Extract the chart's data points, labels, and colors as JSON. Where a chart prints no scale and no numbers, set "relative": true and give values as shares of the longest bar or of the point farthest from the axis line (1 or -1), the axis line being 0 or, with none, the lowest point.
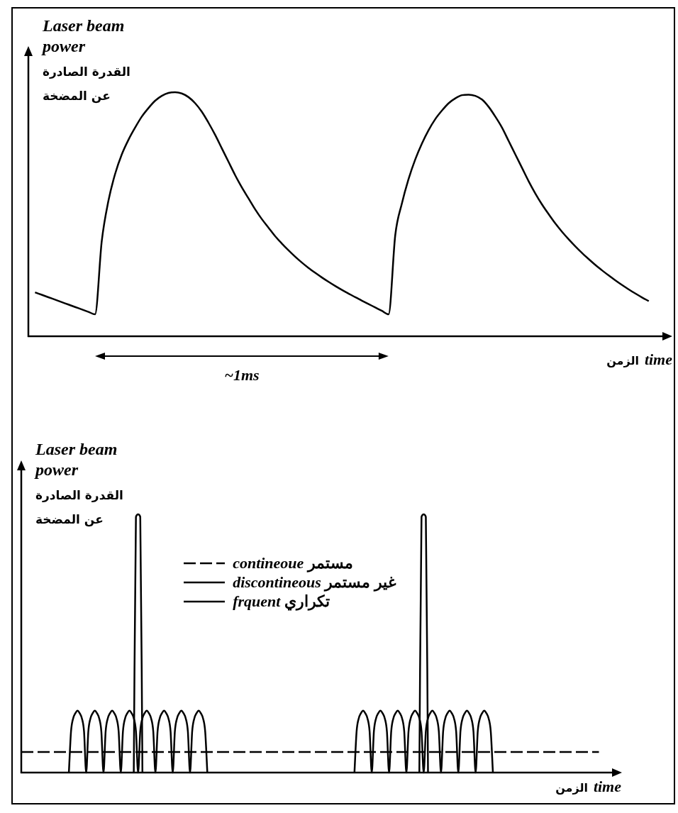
{
  "chart_data": [
    {
      "type": "line",
      "relative": true,
      "tick_labels": false,
      "ylabel": "Laser beam power القدرة الصادرة عن المضخة",
      "xlabel": "الزمن time",
      "annotations": [
        "~1ms"
      ],
      "color": "#000000",
      "categories": [
        null,
        null,
        null,
        null,
        null,
        null,
        null,
        null,
        null,
        null,
        null,
        null,
        null,
        null,
        null,
        null,
        null,
        null,
        null,
        null,
        null,
        null,
        null,
        null,
        null,
        null,
        null,
        null,
        null,
        null,
        null,
        null,
        null,
        null,
        null,
        null,
        null,
        null,
        null,
        null,
        null,
        null,
        null,
        null,
        null,
        null,
        null,
        null,
        null,
        null,
        null,
        null,
        null,
        null,
        null,
        null,
        null,
        null,
        null,
        null,
        null,
        null,
        null,
        null,
        null,
        null,
        null,
        null,
        null,
        null,
        null,
        null,
        null,
        null,
        null,
        null,
        null,
        null,
        null,
        null,
        null,
        null,
        null,
        null,
        null,
        null,
        null,
        null,
        null,
        null,
        null,
        null,
        null,
        null,
        null,
        null,
        null
      ],
      "values": [
        null,
        0.18,
        0.17,
        0.16,
        0.15,
        0.14,
        0.13,
        0.12,
        0.11,
        0.1,
        0.09,
        0.39,
        0.555,
        0.665,
        0.745,
        0.805,
        0.855,
        0.9,
        0.935,
        0.965,
        0.985,
        0.997,
        1,
        0.995,
        0.98,
        0.955,
        0.92,
        0.875,
        0.825,
        0.77,
        0.715,
        0.66,
        0.61,
        0.565,
        0.52,
        0.48,
        0.445,
        0.41,
        0.38,
        0.352,
        0.326,
        0.302,
        0.28,
        0.26,
        0.241,
        0.223,
        0.206,
        0.19,
        0.175,
        0.16,
        0.146,
        0.132,
        0.118,
        0.104,
        0.09,
        0.415,
        0.545,
        0.645,
        0.725,
        0.79,
        0.845,
        0.89,
        0.925,
        0.955,
        0.975,
        0.988,
        0.99,
        0.985,
        0.97,
        0.94,
        0.9,
        0.855,
        0.8,
        0.745,
        0.69,
        0.635,
        0.585,
        0.54,
        0.5,
        0.462,
        0.428,
        0.397,
        0.368,
        0.341,
        0.316,
        0.292,
        0.27,
        0.249,
        0.229,
        0.21,
        0.192,
        0.175,
        0.159,
        0.144,
        null,
        null,
        null
      ]
    },
    {
      "type": "line",
      "relative": true,
      "tick_labels": false,
      "legend": "top",
      "ylabel": "Laser beam power القدرة الصادرة عن المضخة",
      "xlabel": "الزمن time",
      "categories": [
        null,
        null,
        null,
        null,
        null,
        null,
        null,
        null,
        null,
        null,
        null,
        null,
        null,
        null,
        null,
        null,
        null,
        null,
        null,
        null,
        null,
        null,
        null,
        null,
        null,
        null,
        null,
        null,
        null,
        null,
        null,
        null,
        null,
        null,
        null,
        null,
        null,
        null,
        null,
        null,
        null,
        null,
        null,
        null,
        null,
        null,
        null,
        null,
        null,
        null,
        null,
        null,
        null,
        null,
        null,
        null,
        null,
        null,
        null,
        null,
        null,
        null,
        null,
        null,
        null,
        null,
        null,
        null,
        null,
        null,
        null,
        null,
        null,
        null,
        null,
        null,
        null,
        null,
        null,
        null,
        null,
        null,
        null,
        null,
        null,
        null,
        null,
        null,
        null,
        null,
        null,
        null,
        null,
        null,
        null,
        null,
        null,
        null,
        null,
        null,
        null,
        null,
        null,
        null,
        null,
        null,
        null,
        null,
        null,
        null,
        null,
        null,
        null,
        null,
        null,
        null,
        null,
        null,
        null,
        null,
        null,
        null,
        null,
        null,
        null,
        null,
        null,
        null,
        null,
        null,
        null,
        null,
        null,
        null,
        null,
        null,
        null,
        null,
        null,
        null,
        null,
        null,
        null,
        null,
        null,
        null,
        null,
        null,
        null,
        null,
        null,
        null,
        null,
        null,
        null,
        null,
        null,
        null,
        null,
        null,
        null,
        null,
        null,
        null,
        null,
        null,
        null,
        null,
        null,
        null,
        null,
        null,
        null,
        null,
        null,
        null,
        null,
        null,
        null,
        null,
        null,
        null,
        null,
        null,
        null,
        null,
        null,
        null,
        null,
        null,
        null,
        null,
        null,
        null,
        null,
        null,
        null,
        null,
        null,
        null,
        null,
        null,
        null,
        null,
        null,
        null,
        null,
        null,
        null,
        null,
        null,
        null,
        null,
        null,
        null,
        null,
        null,
        null,
        null,
        null,
        null,
        null,
        null,
        null,
        null,
        null,
        null,
        null,
        null,
        null,
        null,
        null,
        null,
        null,
        null,
        null,
        null,
        null,
        null,
        null,
        null,
        null,
        null,
        null,
        null,
        null,
        null,
        null,
        null,
        null,
        null,
        null,
        null,
        null,
        null,
        null,
        null,
        null,
        null,
        null,
        null,
        null,
        null,
        null,
        null,
        null,
        null,
        null,
        null,
        null,
        null,
        null,
        null,
        null,
        null,
        null,
        null,
        null
      ],
      "series": [
        {
          "name": "contineoue مستمر",
          "color": "#000000",
          "line_style": "dashed",
          "values": [
            0.08,
            0.08,
            0.08,
            0.08,
            0.08,
            0.08,
            0.08,
            0.08,
            0.08,
            0.08,
            0.08,
            0.08,
            0.08,
            0.08,
            0.08,
            0.08,
            0.08,
            0.08,
            0.08,
            0.08,
            0.08,
            0.08,
            0.08,
            0.08,
            0.08,
            0.08,
            0.08,
            0.08,
            0.08,
            0.08,
            0.08,
            0.08,
            0.08,
            0.08,
            0.08,
            0.08,
            0.08,
            0.08,
            0.08,
            0.08,
            0.08,
            0.08,
            0.08,
            0.08,
            0.08,
            0.08,
            0.08,
            0.08,
            0.08,
            0.08,
            0.08,
            0.08,
            0.08,
            0.08,
            0.08,
            0.08,
            0.08,
            0.08,
            0.08,
            0.08,
            0.08,
            0.08,
            0.08,
            0.08,
            0.08,
            0.08,
            0.08,
            0.08,
            0.08,
            0.08,
            0.08,
            0.08,
            0.08,
            0.08,
            0.08,
            0.08,
            0.08,
            0.08,
            0.08,
            0.08,
            0.08,
            0.08,
            0.08,
            0.08,
            0.08,
            0.08,
            0.08,
            0.08,
            0.08,
            0.08,
            0.08,
            0.08,
            0.08,
            0.08,
            0.08,
            0.08,
            0.08,
            0.08,
            0.08,
            0.08,
            0.08,
            0.08,
            0.08,
            0.08,
            0.08,
            0.08,
            0.08,
            0.08,
            0.08,
            0.08,
            0.08,
            0.08,
            0.08,
            0.08,
            0.08,
            0.08,
            0.08,
            0.08,
            0.08,
            0.08,
            0.08,
            0.08,
            0.08,
            0.08,
            0.08,
            0.08,
            0.08,
            0.08,
            0.08,
            0.08,
            0.08,
            0.08,
            0.08,
            0.08,
            0.08,
            0.08,
            0.08,
            0.08,
            0.08,
            0.08,
            0.08,
            0.08,
            0.08,
            0.08,
            0.08,
            0.08,
            0.08,
            0.08,
            0.08,
            0.08,
            0.08,
            0.08,
            0.08,
            0.08,
            0.08,
            0.08,
            0.08,
            0.08,
            0.08,
            0.08,
            0.08,
            0.08,
            0.08,
            0.08,
            0.08,
            0.08,
            0.08,
            0.08,
            0.08,
            0.08,
            0.08,
            0.08,
            0.08,
            0.08,
            0.08,
            0.08,
            0.08,
            0.08,
            0.08,
            0.08,
            0.08,
            0.08,
            0.08,
            0.08,
            0.08,
            0.08,
            0.08,
            0.08,
            0.08,
            0.08,
            0.08,
            0.08,
            0.08,
            0.08,
            0.08,
            0.08,
            0.08,
            0.08,
            0.08,
            0.08,
            0.08,
            0.08,
            0.08,
            0.08,
            0.08,
            0.08,
            0.08,
            0.08,
            0.08,
            0.08,
            0.08,
            0.08,
            0.08,
            0.08,
            0.08,
            0.08,
            0.08,
            0.08,
            0.08,
            0.08,
            0.08,
            0.08,
            0.08,
            0.08,
            0.08,
            0.08,
            0.08,
            0.08,
            0.08,
            0.08,
            0.08,
            0.08,
            0.08,
            0.08,
            0.08,
            0.08,
            0.08,
            0.08,
            0.08,
            0.08,
            0.08,
            0.08,
            0.08,
            0.08,
            0.08,
            0.08,
            0.08,
            0.08,
            0.08,
            0.08,
            0.08,
            0.08,
            0.08,
            0.08,
            0.08,
            0.08,
            0.08,
            0.08,
            0.08,
            0.08,
            0.08,
            0.08,
            0.08,
            0.08,
            0.08,
            0.08,
            0.08,
            0.08,
            null,
            null,
            null,
            null,
            null,
            null,
            null,
            null,
            null,
            null
          ]
        },
        {
          "name": "discontineous غير مستمر",
          "color": "#000000",
          "line_style": "solid",
          "values": [
            null,
            null,
            null,
            null,
            null,
            null,
            null,
            null,
            null,
            null,
            null,
            null,
            null,
            null,
            null,
            null,
            null,
            null,
            null,
            null,
            null,
            null,
            null,
            null,
            null,
            null,
            null,
            null,
            null,
            null,
            null,
            null,
            null,
            null,
            null,
            null,
            null,
            null,
            null,
            null,
            null,
            null,
            null,
            null,
            null,
            null,
            null,
            null,
            null,
            null,
            null,
            null,
            0,
            0.99,
            1,
            0.99,
            0,
            null,
            null,
            null,
            null,
            null,
            null,
            null,
            null,
            null,
            null,
            null,
            null,
            null,
            null,
            null,
            null,
            null,
            null,
            null,
            null,
            null,
            null,
            null,
            null,
            null,
            null,
            null,
            null,
            null,
            null,
            null,
            null,
            null,
            null,
            null,
            null,
            null,
            null,
            null,
            null,
            null,
            null,
            null,
            null,
            null,
            null,
            null,
            null,
            null,
            null,
            null,
            null,
            null,
            null,
            null,
            null,
            null,
            null,
            null,
            null,
            null,
            null,
            null,
            null,
            null,
            null,
            null,
            null,
            null,
            null,
            null,
            null,
            null,
            null,
            null,
            null,
            null,
            null,
            null,
            null,
            null,
            null,
            null,
            null,
            null,
            null,
            null,
            null,
            null,
            null,
            null,
            null,
            null,
            null,
            null,
            null,
            null,
            null,
            null,
            null,
            null,
            null,
            null,
            null,
            null,
            null,
            null,
            null,
            null,
            null,
            null,
            null,
            null,
            null,
            null,
            null,
            null,
            null,
            null,
            null,
            null,
            null,
            null,
            null,
            null,
            null,
            null,
            0,
            0.99,
            1,
            0.99,
            0,
            null,
            null,
            null,
            null,
            null,
            null,
            null,
            null,
            null,
            null,
            null,
            null,
            null,
            null,
            null,
            null,
            null,
            null,
            null,
            null,
            null,
            null,
            null,
            null,
            null,
            null,
            null,
            null,
            null,
            null,
            null,
            null,
            null,
            null,
            null,
            null,
            null,
            null,
            null,
            null,
            null,
            null,
            null,
            null,
            null,
            null,
            null,
            null,
            null,
            null,
            null,
            null,
            null,
            null,
            null,
            null,
            null,
            null,
            null,
            null,
            null,
            null,
            null,
            null,
            null,
            null,
            null,
            null,
            null,
            null,
            null,
            null,
            null,
            null,
            null,
            null,
            null,
            null,
            null,
            null,
            null,
            null,
            null,
            null,
            null,
            null,
            null,
            null,
            null
          ]
        },
        {
          "name": "frquent تكراري",
          "color": "#000000",
          "line_style": "solid",
          "values": [
            null,
            null,
            null,
            null,
            null,
            null,
            null,
            null,
            null,
            null,
            null,
            null,
            null,
            null,
            null,
            null,
            null,
            null,
            null,
            null,
            null,
            null,
            0,
            0.16,
            0.21,
            0.23,
            0.24,
            0.23,
            0.21,
            0.16,
            0,
            0.16,
            0.21,
            0.23,
            0.24,
            0.23,
            0.21,
            0.16,
            0,
            0.16,
            0.21,
            0.23,
            0.24,
            0.23,
            0.21,
            0.16,
            0,
            0.16,
            0.21,
            0.23,
            0.24,
            0.23,
            0.21,
            0.16,
            0,
            0.16,
            0.21,
            0.23,
            0.24,
            0.23,
            0.21,
            0.16,
            0,
            0.16,
            0.21,
            0.23,
            0.24,
            0.23,
            0.21,
            0.16,
            0,
            0.16,
            0.21,
            0.23,
            0.24,
            0.23,
            0.21,
            0.16,
            0,
            0.16,
            0.21,
            0.23,
            0.24,
            0.23,
            0.21,
            0.16,
            0,
            null,
            null,
            null,
            null,
            null,
            null,
            null,
            null,
            null,
            null,
            null,
            null,
            null,
            null,
            null,
            null,
            null,
            null,
            null,
            null,
            null,
            null,
            null,
            null,
            null,
            null,
            null,
            null,
            null,
            null,
            null,
            null,
            null,
            null,
            null,
            null,
            null,
            null,
            null,
            null,
            null,
            null,
            null,
            null,
            null,
            null,
            null,
            null,
            null,
            null,
            null,
            null,
            null,
            null,
            null,
            null,
            null,
            null,
            null,
            null,
            null,
            null,
            null,
            null,
            null,
            null,
            null,
            0,
            0.16,
            0.21,
            0.23,
            0.24,
            0.23,
            0.21,
            0.16,
            0,
            0.16,
            0.21,
            0.23,
            0.24,
            0.23,
            0.21,
            0.16,
            0,
            0.16,
            0.21,
            0.23,
            0.24,
            0.23,
            0.21,
            0.16,
            0,
            0.16,
            0.21,
            0.23,
            0.24,
            0.23,
            0.21,
            0.16,
            0,
            0.16,
            0.21,
            0.23,
            0.24,
            0.23,
            0.21,
            0.16,
            0,
            0.16,
            0.21,
            0.23,
            0.24,
            0.23,
            0.21,
            0.16,
            0,
            0.16,
            0.21,
            0.23,
            0.24,
            0.23,
            0.21,
            0.16,
            0,
            0.16,
            0.21,
            0.23,
            0.24,
            0.23,
            0.21,
            0.16,
            0,
            null,
            null,
            null,
            null,
            null,
            null,
            null,
            null,
            null,
            null,
            null,
            null,
            null,
            null,
            null,
            null,
            null,
            null,
            null,
            null,
            null,
            null,
            null,
            null,
            null,
            null,
            null,
            null,
            null,
            null,
            null,
            null,
            null,
            null,
            null,
            null,
            null,
            null,
            null,
            null,
            null,
            null,
            null,
            null,
            null,
            null,
            null,
            null,
            null,
            null,
            null,
            null,
            null,
            null,
            null,
            null,
            null,
            null,
            null
          ]
        }
      ]
    }
  ]
}
